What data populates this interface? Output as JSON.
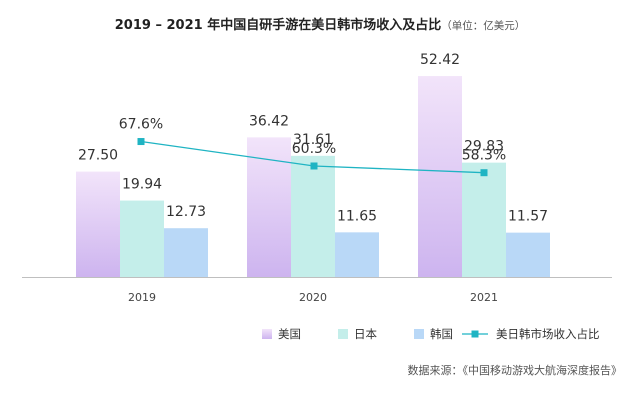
{
  "chart_data": {
    "type": "bar",
    "title": "2019 – 2021 年中国自研手游在美日韩市场收入及占比",
    "unit": "（单位：亿美元）",
    "categories": [
      "2019",
      "2020",
      "2021"
    ],
    "ylim": [
      0,
      60
    ],
    "series": [
      {
        "name": "美国",
        "values": [
          27.5,
          36.42,
          52.42
        ],
        "color_top": "#F2E4FA",
        "color_bottom": "#CDB4EF"
      },
      {
        "name": "日本",
        "values": [
          19.94,
          31.61,
          29.83
        ],
        "color_top": "#C4EEEA",
        "color_bottom": "#C4EEEA"
      },
      {
        "name": "韩国",
        "values": [
          12.73,
          11.65,
          11.57
        ],
        "color_top": "#B9D8F7",
        "color_bottom": "#B9D8F7"
      }
    ],
    "bar_labels": [
      [
        "27.50",
        "19.94",
        "12.73"
      ],
      [
        "36.42",
        "31.61",
        "11.65"
      ],
      [
        "52.42",
        "29.83",
        "11.57"
      ]
    ],
    "line": {
      "name": "美日韩市场收入占比",
      "values": [
        67.6,
        60.3,
        58.3
      ],
      "labels": [
        "67.6%",
        "60.3%",
        "58.3%"
      ],
      "ylim": [
        0,
        100
      ],
      "color": "#1FB4C3"
    },
    "legend": {
      "position": "bottom-right"
    },
    "grid": false,
    "source": "数据来源：《中国移动游戏大航海深度报告》"
  }
}
